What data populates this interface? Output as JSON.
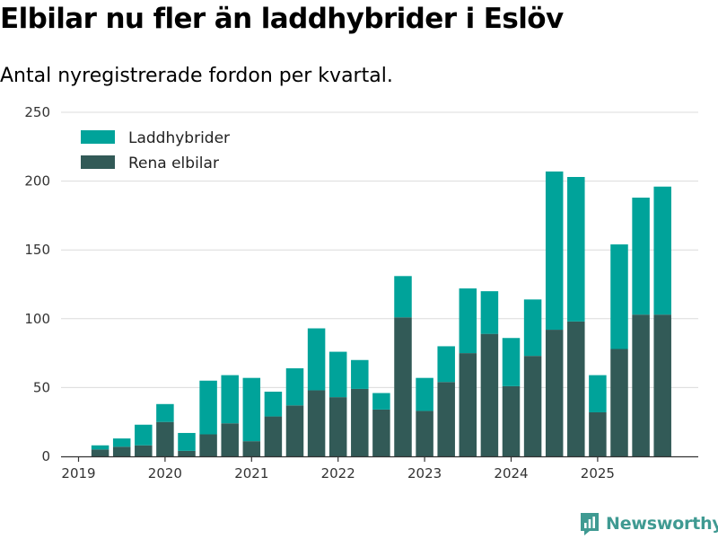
{
  "title": "Elbilar nu fler än laddhybrider i Eslöv",
  "subtitle": "Antal nyregistrerade fordon per kvartal.",
  "brand": "Newsworthy",
  "colors": {
    "plugin_hybrid": "#00a39a",
    "electric": "#325a57",
    "grid": "#dcdcdc",
    "axis": "#333333",
    "brand": "#3f9a92"
  },
  "chart_data": {
    "type": "bar",
    "stacked": true,
    "title": "Elbilar nu fler än laddhybrider i Eslöv",
    "subtitle": "Antal nyregistrerade fordon per kvartal.",
    "xlabel": "",
    "ylabel": "",
    "ylim": [
      0,
      250
    ],
    "yticks": [
      0,
      50,
      100,
      150,
      200,
      250
    ],
    "grid": true,
    "legend_position": "top-left",
    "x_tick_labels": [
      "2019",
      "2020",
      "2021",
      "2022",
      "2023",
      "2024",
      "2025"
    ],
    "x_tick_quarter_index": [
      0,
      4,
      8,
      12,
      16,
      20,
      24
    ],
    "categories": [
      "2019 Q1",
      "2019 Q2",
      "2019 Q3",
      "2019 Q4",
      "2020 Q1",
      "2020 Q2",
      "2020 Q3",
      "2020 Q4",
      "2021 Q1",
      "2021 Q2",
      "2021 Q3",
      "2021 Q4",
      "2022 Q1",
      "2022 Q2",
      "2022 Q3",
      "2022 Q4",
      "2023 Q1",
      "2023 Q2",
      "2023 Q3",
      "2023 Q4",
      "2024 Q1",
      "2024 Q2",
      "2024 Q3",
      "2024 Q4",
      "2025 Q1",
      "2025 Q2",
      "2025 Q3",
      "2025 Q4"
    ],
    "series": [
      {
        "name": "Rena elbilar",
        "color": "#325a57",
        "values": [
          null,
          5,
          7,
          8,
          25,
          4,
          16,
          24,
          11,
          29,
          37,
          48,
          43,
          49,
          34,
          101,
          33,
          54,
          75,
          89,
          51,
          73,
          92,
          98,
          32,
          78,
          103,
          103
        ]
      },
      {
        "name": "Laddhybrider",
        "color": "#00a39a",
        "values": [
          null,
          3,
          6,
          15,
          13,
          13,
          39,
          35,
          46,
          18,
          27,
          45,
          33,
          21,
          12,
          30,
          24,
          26,
          47,
          31,
          35,
          41,
          115,
          105,
          27,
          76,
          85,
          93
        ]
      }
    ],
    "legend_order": [
      "Laddhybrider",
      "Rena elbilar"
    ]
  }
}
